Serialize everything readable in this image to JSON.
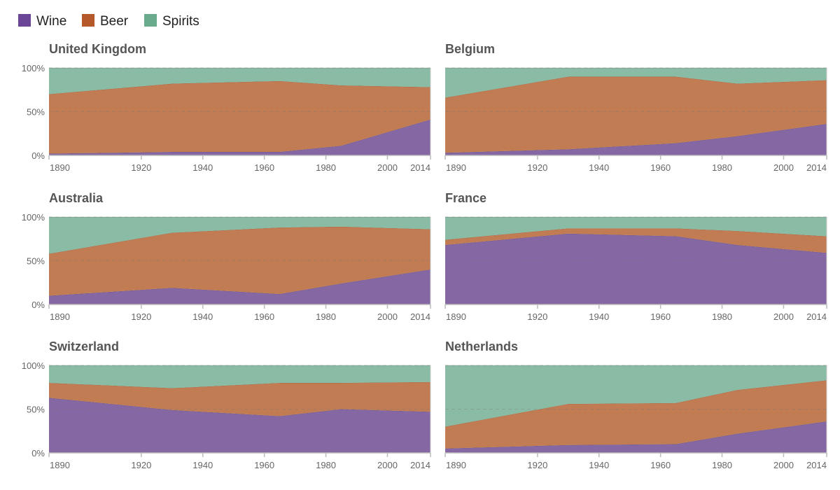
{
  "legend": [
    {
      "label": "Wine",
      "color": "#6b4596"
    },
    {
      "label": "Beer",
      "color": "#b5592b"
    },
    {
      "label": "Spirits",
      "color": "#6aab8e"
    }
  ],
  "fill_colors": {
    "Wine": "#8467a3",
    "Beer": "#c27c53",
    "Spirits": "#8abba4"
  },
  "chart_data": {
    "type": "area",
    "stacked": "percent",
    "x": [
      1890,
      1930,
      1965,
      1985,
      2014
    ],
    "x_ticks": [
      "1890",
      "1920",
      "1940",
      "1960",
      "1980",
      "2000",
      "2014"
    ],
    "y_ticks": [
      "0%",
      "50%",
      "100%"
    ],
    "ylim": [
      0,
      100
    ],
    "panels": [
      {
        "title": "United Kingdom",
        "series": [
          {
            "name": "Wine",
            "values": [
              2,
              4,
              4,
              11,
              41
            ]
          },
          {
            "name": "Beer",
            "values": [
              68,
              78,
              81,
              69,
              37
            ]
          },
          {
            "name": "Spirits",
            "values": [
              30,
              18,
              15,
              20,
              22
            ]
          }
        ]
      },
      {
        "title": "Belgium",
        "series": [
          {
            "name": "Wine",
            "values": [
              3,
              7,
              14,
              22,
              36
            ]
          },
          {
            "name": "Beer",
            "values": [
              63,
              83,
              76,
              60,
              50
            ]
          },
          {
            "name": "Spirits",
            "values": [
              34,
              10,
              10,
              18,
              14
            ]
          }
        ]
      },
      {
        "title": "Australia",
        "series": [
          {
            "name": "Wine",
            "values": [
              10,
              19,
              12,
              24,
              40
            ]
          },
          {
            "name": "Beer",
            "values": [
              48,
              63,
              76,
              65,
              46
            ]
          },
          {
            "name": "Spirits",
            "values": [
              42,
              18,
              12,
              11,
              14
            ]
          }
        ]
      },
      {
        "title": "France",
        "series": [
          {
            "name": "Wine",
            "values": [
              68,
              81,
              78,
              68,
              59
            ]
          },
          {
            "name": "Beer",
            "values": [
              6,
              6,
              9,
              16,
              19
            ]
          },
          {
            "name": "Spirits",
            "values": [
              26,
              13,
              13,
              16,
              22
            ]
          }
        ]
      },
      {
        "title": "Switzerland",
        "series": [
          {
            "name": "Wine",
            "values": [
              63,
              49,
              42,
              50,
              47
            ]
          },
          {
            "name": "Beer",
            "values": [
              17,
              25,
              38,
              30,
              34
            ]
          },
          {
            "name": "Spirits",
            "values": [
              20,
              26,
              20,
              20,
              19
            ]
          }
        ]
      },
      {
        "title": "Netherlands",
        "series": [
          {
            "name": "Wine",
            "values": [
              5,
              9,
              10,
              22,
              36
            ]
          },
          {
            "name": "Beer",
            "values": [
              25,
              47,
              47,
              50,
              47
            ]
          },
          {
            "name": "Spirits",
            "values": [
              70,
              44,
              43,
              28,
              17
            ]
          }
        ]
      }
    ]
  }
}
